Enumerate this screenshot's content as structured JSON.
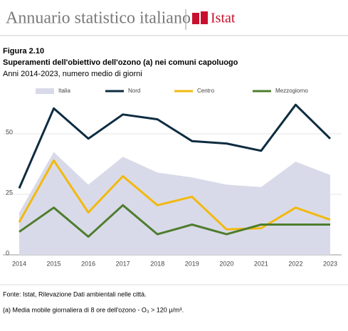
{
  "header": {
    "title": "Annuario statistico italiano",
    "logo": "Istat"
  },
  "chart_data": {
    "type": "line",
    "figure": "Figura 2.10",
    "title": "Superamenti dell'obiettivo dell'ozono (a) nei comuni capoluogo",
    "subtitle": "Anni 2014-2023, numero medio di giorni",
    "categories": [
      "2014",
      "2015",
      "2016",
      "2017",
      "2018",
      "2019",
      "2020",
      "2021",
      "2022",
      "2023"
    ],
    "series": [
      {
        "name": "Italia",
        "mark": "area",
        "color": "#d9dae9",
        "values": [
          17.5,
          42.5,
          29,
          40.5,
          34,
          32,
          29,
          28,
          38.5,
          33
        ]
      },
      {
        "name": "Nord",
        "mark": "line",
        "color": "#0d2c40",
        "values": [
          27.5,
          60.5,
          48,
          58,
          56,
          47,
          46,
          43,
          62,
          48
        ]
      },
      {
        "name": "Centro",
        "mark": "line",
        "color": "#f2b90f",
        "values": [
          13.5,
          39,
          17.5,
          32.5,
          20.5,
          24,
          10.5,
          11,
          19.5,
          14.5
        ]
      },
      {
        "name": "Mezzogiorno",
        "mark": "line",
        "color": "#4e7d2e",
        "values": [
          9.5,
          19.5,
          7.5,
          20.5,
          8.5,
          12.5,
          8.5,
          12.5,
          12.5,
          12.5
        ]
      }
    ],
    "ylim": [
      0,
      65
    ],
    "yticks": [
      0,
      25,
      50
    ],
    "grid": true,
    "source": "Fonte: Istat, Rilevazione Dati ambientali nelle città.",
    "note": "(a) Media mobile giornaliera di 8 ore dell'ozono - O₃ > 120 μ/m³."
  }
}
